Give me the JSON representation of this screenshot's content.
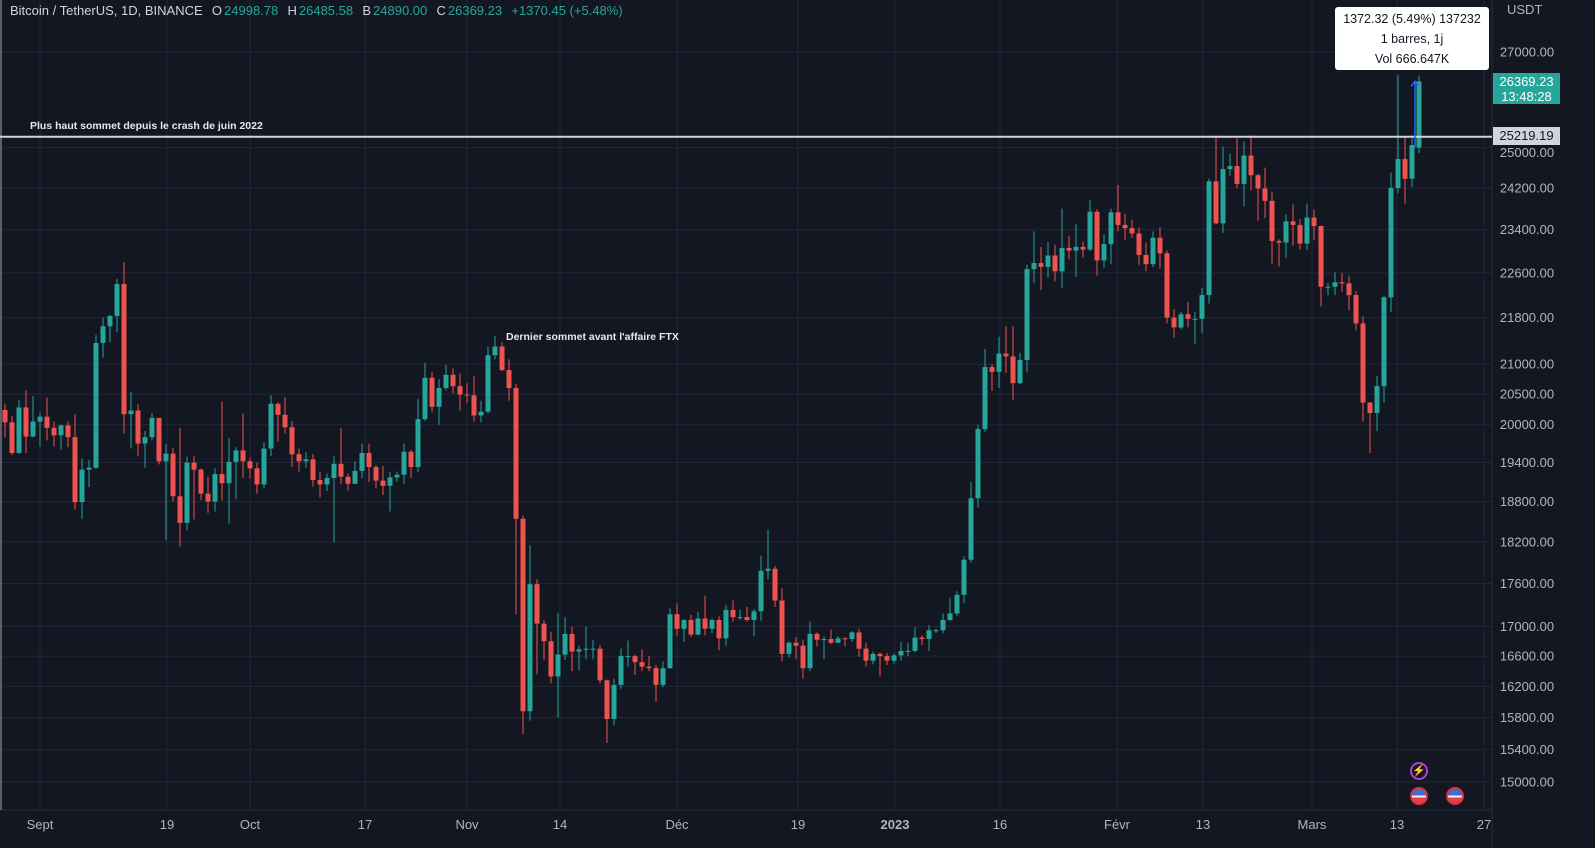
{
  "header": {
    "symbol": "Bitcoin / TetherUS, 1D, BINANCE",
    "o_label": "O",
    "o": "24998.78",
    "h_label": "H",
    "h": "26485.58",
    "l_label": "B",
    "l": "24890.00",
    "c_label": "C",
    "c": "26369.23",
    "change": "+1370.45 (+5.48%)"
  },
  "tooltip": {
    "line1": "1372.32 (5.49%) 137232",
    "line2": "1 barres, 1j",
    "line3": "Vol 666.647K"
  },
  "price_axis": {
    "unit": "USDT",
    "last_price": "26369.23",
    "countdown": "13:48:28",
    "line_price": "25219.19"
  },
  "annotations": {
    "top_line": "Plus haut sommet depuis le crash de juin 2022",
    "ftx": "Dernier sommet avant l'affaire FTX"
  },
  "icons": [
    "lightning-event-icon",
    "us-flag-event-icon",
    "us-flag-event-icon"
  ],
  "colors": {
    "background": "#131722",
    "up": "#26a69a",
    "down": "#ef5350",
    "grid": "#22263a",
    "hline": "#d1d4dc",
    "event": "#b040d0"
  },
  "chart_data": {
    "type": "candlestick",
    "title": "Bitcoin / TetherUS, 1D, BINANCE",
    "scale": "log",
    "ylim": [
      14700,
      27400
    ],
    "grid": true,
    "y_ticks": [
      "27000.00",
      "25000.00",
      "24200.00",
      "23400.00",
      "22600.00",
      "21800.00",
      "21000.00",
      "20500.00",
      "20000.00",
      "19400.00",
      "18800.00",
      "18200.00",
      "17600.00",
      "17000.00",
      "16600.00",
      "16200.00",
      "15800.00",
      "15400.00",
      "15000.00"
    ],
    "x_ticks": [
      "Sept",
      "19",
      "Oct",
      "17",
      "Nov",
      "14",
      "Déc",
      "19",
      "2023",
      "16",
      "Févr",
      "13",
      "Mars",
      "13",
      "27"
    ],
    "horizontal_line": 25219.19,
    "candles_ohlc": [
      [
        20240,
        20340,
        19800,
        20040
      ],
      [
        20040,
        20140,
        19520,
        19550
      ],
      [
        19550,
        20400,
        19540,
        20280
      ],
      [
        20280,
        20560,
        19550,
        19810
      ],
      [
        19810,
        20470,
        19800,
        20050
      ],
      [
        20050,
        20200,
        19650,
        20130
      ],
      [
        20130,
        20440,
        19750,
        19950
      ],
      [
        19950,
        20050,
        19650,
        19830
      ],
      [
        19830,
        20000,
        19600,
        19990
      ],
      [
        19990,
        20050,
        19640,
        19800
      ],
      [
        19800,
        20170,
        18680,
        18790
      ],
      [
        18790,
        19460,
        18540,
        19290
      ],
      [
        19290,
        19440,
        19020,
        19320
      ],
      [
        19320,
        21500,
        19300,
        21360
      ],
      [
        21360,
        21800,
        21110,
        21650
      ],
      [
        21650,
        21850,
        21370,
        21830
      ],
      [
        21830,
        22490,
        21550,
        22400
      ],
      [
        22400,
        22800,
        19860,
        20170
      ],
      [
        20170,
        20540,
        19620,
        20230
      ],
      [
        20230,
        20330,
        19500,
        19700
      ],
      [
        19700,
        19900,
        19320,
        19800
      ],
      [
        19800,
        20190,
        19750,
        20110
      ],
      [
        20110,
        20110,
        19370,
        19420
      ],
      [
        19420,
        19690,
        18230,
        19540
      ],
      [
        19540,
        19630,
        18800,
        18880
      ],
      [
        18880,
        19950,
        18130,
        18480
      ],
      [
        18480,
        19490,
        18370,
        19400
      ],
      [
        19400,
        19500,
        18530,
        19290
      ],
      [
        19290,
        19310,
        18820,
        18920
      ],
      [
        18920,
        19180,
        18630,
        18800
      ],
      [
        18800,
        19310,
        18650,
        19220
      ],
      [
        19220,
        20380,
        18820,
        19080
      ],
      [
        19080,
        19790,
        18470,
        19410
      ],
      [
        19410,
        19640,
        18840,
        19590
      ],
      [
        19590,
        20180,
        19160,
        19420
      ],
      [
        19420,
        19480,
        19150,
        19310
      ],
      [
        19310,
        19400,
        18920,
        19060
      ],
      [
        19060,
        19720,
        19000,
        19620
      ],
      [
        19620,
        20480,
        19500,
        20340
      ],
      [
        20340,
        20360,
        19730,
        20160
      ],
      [
        20160,
        20450,
        19860,
        19960
      ],
      [
        19960,
        20060,
        19330,
        19530
      ],
      [
        19530,
        19620,
        19260,
        19420
      ],
      [
        19420,
        19560,
        19320,
        19450
      ],
      [
        19450,
        19530,
        19030,
        19130
      ],
      [
        19130,
        19260,
        18860,
        19060
      ],
      [
        19060,
        19230,
        18960,
        19160
      ],
      [
        19160,
        19500,
        18190,
        19380
      ],
      [
        19380,
        19950,
        19070,
        19180
      ],
      [
        19180,
        19230,
        18970,
        19070
      ],
      [
        19070,
        19420,
        19070,
        19270
      ],
      [
        19270,
        19700,
        19160,
        19550
      ],
      [
        19550,
        19700,
        19100,
        19330
      ],
      [
        19330,
        19360,
        19000,
        19120
      ],
      [
        19120,
        19350,
        18900,
        19040
      ],
      [
        19040,
        19250,
        18650,
        19170
      ],
      [
        19170,
        19260,
        19100,
        19210
      ],
      [
        19210,
        19700,
        19070,
        19570
      ],
      [
        19570,
        19600,
        19160,
        19330
      ],
      [
        19330,
        20420,
        19250,
        20090
      ],
      [
        20090,
        21020,
        20060,
        20770
      ],
      [
        20770,
        20870,
        20200,
        20290
      ],
      [
        20290,
        20750,
        20000,
        20600
      ],
      [
        20600,
        20990,
        20560,
        20820
      ],
      [
        20820,
        20930,
        20510,
        20630
      ],
      [
        20630,
        20840,
        20230,
        20490
      ],
      [
        20490,
        20680,
        20350,
        20480
      ],
      [
        20480,
        20800,
        20050,
        20150
      ],
      [
        20150,
        20390,
        20040,
        20210
      ],
      [
        20210,
        21300,
        20180,
        21150
      ],
      [
        21150,
        21480,
        21080,
        21300
      ],
      [
        21300,
        21370,
        20880,
        20900
      ],
      [
        20900,
        21080,
        20390,
        20600
      ],
      [
        20600,
        20670,
        17170,
        18540
      ],
      [
        18540,
        18590,
        15590,
        15880
      ],
      [
        15880,
        18150,
        15760,
        17590
      ],
      [
        17590,
        17660,
        16360,
        17040
      ],
      [
        17040,
        17090,
        16550,
        16800
      ],
      [
        16800,
        16930,
        16240,
        16330
      ],
      [
        16330,
        17190,
        15800,
        16620
      ],
      [
        16620,
        17130,
        16550,
        16900
      ],
      [
        16900,
        17000,
        16400,
        16660
      ],
      [
        16660,
        16740,
        16410,
        16690
      ],
      [
        16690,
        17000,
        16560,
        16700
      ],
      [
        16700,
        16820,
        16560,
        16700
      ],
      [
        16700,
        16750,
        16240,
        16280
      ],
      [
        16280,
        16290,
        15480,
        15780
      ],
      [
        15780,
        16300,
        15700,
        16220
      ],
      [
        16220,
        16700,
        16170,
        16600
      ],
      [
        16600,
        16810,
        16460,
        16600
      ],
      [
        16600,
        16620,
        16350,
        16520
      ],
      [
        16520,
        16690,
        16400,
        16460
      ],
      [
        16460,
        16600,
        16400,
        16440
      ],
      [
        16440,
        16480,
        16000,
        16220
      ],
      [
        16220,
        16530,
        16190,
        16440
      ],
      [
        16440,
        17250,
        16430,
        17170
      ],
      [
        17170,
        17320,
        16870,
        16970
      ],
      [
        16970,
        17100,
        16790,
        17090
      ],
      [
        17090,
        17160,
        16860,
        16890
      ],
      [
        16890,
        17200,
        16880,
        17110
      ],
      [
        17110,
        17430,
        16880,
        16970
      ],
      [
        16970,
        17110,
        16910,
        17090
      ],
      [
        17090,
        17140,
        16680,
        16840
      ],
      [
        16840,
        17300,
        16740,
        17230
      ],
      [
        17230,
        17360,
        17070,
        17130
      ],
      [
        17130,
        17230,
        17090,
        17130
      ],
      [
        17130,
        17270,
        17070,
        17090
      ],
      [
        17090,
        17240,
        16870,
        17210
      ],
      [
        17210,
        18000,
        17080,
        17780
      ],
      [
        17780,
        18380,
        17660,
        17810
      ],
      [
        17810,
        17850,
        17270,
        17360
      ],
      [
        17360,
        17530,
        16530,
        16630
      ],
      [
        16630,
        16800,
        16580,
        16780
      ],
      [
        16780,
        16860,
        16560,
        16740
      ],
      [
        16740,
        16820,
        16300,
        16440
      ],
      [
        16440,
        17070,
        16400,
        16900
      ],
      [
        16900,
        16920,
        16730,
        16820
      ],
      [
        16820,
        16870,
        16560,
        16830
      ],
      [
        16830,
        16960,
        16760,
        16780
      ],
      [
        16780,
        16870,
        16780,
        16840
      ],
      [
        16840,
        16860,
        16730,
        16830
      ],
      [
        16830,
        16940,
        16790,
        16920
      ],
      [
        16920,
        16970,
        16590,
        16700
      ],
      [
        16700,
        16780,
        16460,
        16540
      ],
      [
        16540,
        16660,
        16490,
        16630
      ],
      [
        16630,
        16650,
        16330,
        16600
      ],
      [
        16600,
        16640,
        16480,
        16540
      ],
      [
        16540,
        16630,
        16500,
        16610
      ],
      [
        16610,
        16790,
        16540,
        16670
      ],
      [
        16670,
        16780,
        16600,
        16670
      ],
      [
        16670,
        16990,
        16650,
        16850
      ],
      [
        16850,
        16880,
        16750,
        16830
      ],
      [
        16830,
        17020,
        16670,
        16950
      ],
      [
        16950,
        16970,
        16910,
        16950
      ],
      [
        16950,
        17180,
        16910,
        17090
      ],
      [
        17090,
        17400,
        17080,
        17180
      ],
      [
        17180,
        17490,
        17150,
        17440
      ],
      [
        17440,
        17990,
        17320,
        17940
      ],
      [
        17940,
        19100,
        17900,
        18850
      ],
      [
        18850,
        20000,
        18710,
        19930
      ],
      [
        19930,
        21260,
        19890,
        20950
      ],
      [
        20950,
        21000,
        20550,
        20870
      ],
      [
        20870,
        21470,
        20600,
        21180
      ],
      [
        21180,
        21650,
        20850,
        21130
      ],
      [
        21130,
        21650,
        20400,
        20680
      ],
      [
        20680,
        21190,
        20660,
        21070
      ],
      [
        21070,
        22750,
        20860,
        22670
      ],
      [
        22670,
        23370,
        22420,
        22780
      ],
      [
        22780,
        23080,
        22290,
        22710
      ],
      [
        22710,
        23170,
        22520,
        22920
      ],
      [
        22920,
        23120,
        22450,
        22630
      ],
      [
        22630,
        23800,
        22320,
        23060
      ],
      [
        23060,
        23280,
        22850,
        23010
      ],
      [
        23010,
        23500,
        22530,
        23080
      ],
      [
        23080,
        23180,
        22880,
        23030
      ],
      [
        23030,
        23960,
        23000,
        23740
      ],
      [
        23740,
        23790,
        22550,
        22830
      ],
      [
        22830,
        23310,
        22700,
        23130
      ],
      [
        23130,
        23800,
        22760,
        23730
      ],
      [
        23730,
        24260,
        23370,
        23490
      ],
      [
        23490,
        23700,
        23210,
        23430
      ],
      [
        23430,
        23590,
        23250,
        23330
      ],
      [
        23330,
        23440,
        22750,
        22930
      ],
      [
        22930,
        23160,
        22630,
        22760
      ],
      [
        22760,
        23370,
        22710,
        23250
      ],
      [
        23250,
        23450,
        22680,
        22960
      ],
      [
        22960,
        23010,
        21700,
        21800
      ],
      [
        21800,
        21950,
        21450,
        21630
      ],
      [
        21630,
        21900,
        21600,
        21860
      ],
      [
        21860,
        22080,
        21630,
        21780
      ],
      [
        21780,
        21900,
        21350,
        21780
      ],
      [
        21780,
        22330,
        21530,
        22200
      ],
      [
        22200,
        24380,
        22050,
        24330
      ],
      [
        24330,
        25250,
        23500,
        23520
      ],
      [
        23520,
        25020,
        23340,
        24570
      ],
      [
        24570,
        24880,
        24440,
        24630
      ],
      [
        24630,
        25190,
        24200,
        24280
      ],
      [
        24280,
        25120,
        23850,
        24840
      ],
      [
        24840,
        25250,
        24150,
        24450
      ],
      [
        24450,
        24480,
        23570,
        24190
      ],
      [
        24190,
        24600,
        23620,
        23950
      ],
      [
        23950,
        24130,
        22770,
        23190
      ],
      [
        23190,
        23220,
        22720,
        23160
      ],
      [
        23160,
        23690,
        22870,
        23560
      ],
      [
        23560,
        23880,
        23100,
        23490
      ],
      [
        23490,
        23600,
        23030,
        23140
      ],
      [
        23140,
        23900,
        23020,
        23630
      ],
      [
        23630,
        23780,
        23200,
        23470
      ],
      [
        23470,
        23480,
        22000,
        22350
      ],
      [
        22350,
        22420,
        22200,
        22350
      ],
      [
        22350,
        22610,
        22200,
        22430
      ],
      [
        22430,
        22600,
        22260,
        22410
      ],
      [
        22410,
        22550,
        21930,
        22200
      ],
      [
        22200,
        22270,
        21580,
        21700
      ],
      [
        21700,
        21820,
        20050,
        20360
      ],
      [
        20360,
        20370,
        19550,
        20190
      ],
      [
        20190,
        20800,
        19900,
        20630
      ],
      [
        20630,
        22190,
        20360,
        22160
      ],
      [
        22160,
        24500,
        21900,
        24200
      ],
      [
        24200,
        26500,
        24100,
        24770
      ],
      [
        24770,
        25230,
        23900,
        24380
      ],
      [
        24380,
        25200,
        24220,
        25050
      ],
      [
        24998.78,
        26485.58,
        24890.0,
        26369.23
      ]
    ]
  }
}
